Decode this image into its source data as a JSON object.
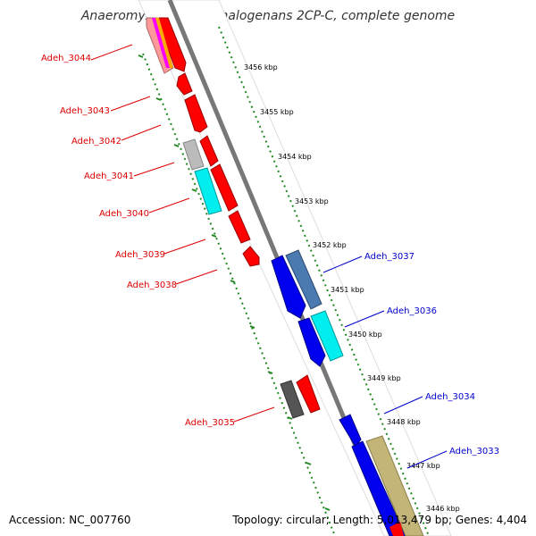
{
  "title": "Anaeromyxobacter dehalogenans 2CP-C, complete genome",
  "accession": "Accession: NC_007760",
  "stats": "Topology: circular; Length: 5,013,479 bp; Genes: 4,404",
  "ticks": [
    "3456 kbp",
    "3455 kbp",
    "3454 kbp",
    "3453 kbp",
    "3452 kbp",
    "3451 kbp",
    "3450 kbp",
    "3449 kbp",
    "3448 kbp",
    "3447 kbp",
    "3446 kbp"
  ],
  "genes_reverse": [
    "Adeh_3044",
    "Adeh_3043",
    "Adeh_3042",
    "Adeh_3041",
    "Adeh_3040",
    "Adeh_3039",
    "Adeh_3038",
    "Adeh_3035"
  ],
  "genes_forward": [
    "Adeh_3037",
    "Adeh_3036",
    "Adeh_3034",
    "Adeh_3033"
  ],
  "colors": {
    "reverse_label": "#dd0000",
    "forward_label": "#0000cc",
    "cds_red": "#ff0000",
    "cds_blue": "#0000ee",
    "cyan": "#00eeee",
    "steel": "#4a7ab0",
    "tan": "#c2b577",
    "gray_light": "#bbbbbb",
    "gray_dark": "#555555",
    "backbone": "#777777",
    "dots": "#228822"
  }
}
